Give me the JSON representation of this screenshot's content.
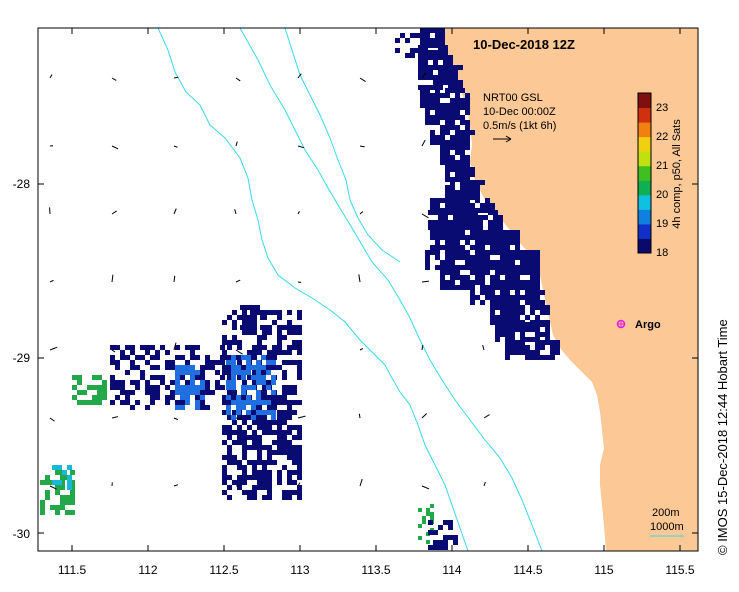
{
  "title": "10-Dec-2018 12Z",
  "credit": "© IMOS 15-Dec-2018 12:44 Hobart Time",
  "current_info": [
    "NRT00 GSL",
    "10-Dec 00:00Z",
    "0.5m/s (1kt 6h)"
  ],
  "argo_label": "Argo",
  "depth_labels": [
    "200m",
    "1000m"
  ],
  "colorbar": {
    "label": "4h comp, p50, All Sats",
    "ticks": [
      "18",
      "19",
      "20",
      "21",
      "22",
      "23"
    ],
    "min": 18,
    "max": 23.5,
    "colors": [
      "#0a0a6e",
      "#1030c8",
      "#1080e0",
      "#10c0e0",
      "#10b050",
      "#40c020",
      "#c0e010",
      "#f0d010",
      "#f08010",
      "#d03010",
      "#801010"
    ]
  },
  "axes": {
    "x_ticks": [
      "111.5",
      "112",
      "112.5",
      "113",
      "113.5",
      "114",
      "114.5",
      "115",
      "115.5"
    ],
    "y_ticks": [
      "-28",
      "-29",
      "-30"
    ]
  },
  "colors": {
    "land": "#fbc896",
    "sst_dark": "#0a0a73",
    "sst_blue": "#1f6fe0",
    "sst_cyan": "#18b8d8",
    "sst_green": "#22a848",
    "bathy": "#38d8f0",
    "argo": "#e020e0",
    "arrow": "#000000"
  },
  "chart_data": {
    "type": "map",
    "title": "10-Dec-2018 12Z",
    "lon_range": [
      111.3,
      115.6
    ],
    "lat_range": [
      -30.1,
      -27.15
    ],
    "x_ticks": [
      111.5,
      112,
      112.5,
      113,
      113.5,
      114,
      114.5,
      115,
      115.5
    ],
    "y_ticks": [
      -28,
      -29,
      -30
    ],
    "argo": {
      "lon": 115.12,
      "lat": -28.83,
      "label": "Argo"
    },
    "colorbar": {
      "label": "4h comp, p50, All Sats",
      "min": 18,
      "max": 23.5,
      "ticks": [
        18,
        19,
        20,
        21,
        22,
        23
      ]
    },
    "current_scale": "0.5m/s (1kt 6h)"
  }
}
